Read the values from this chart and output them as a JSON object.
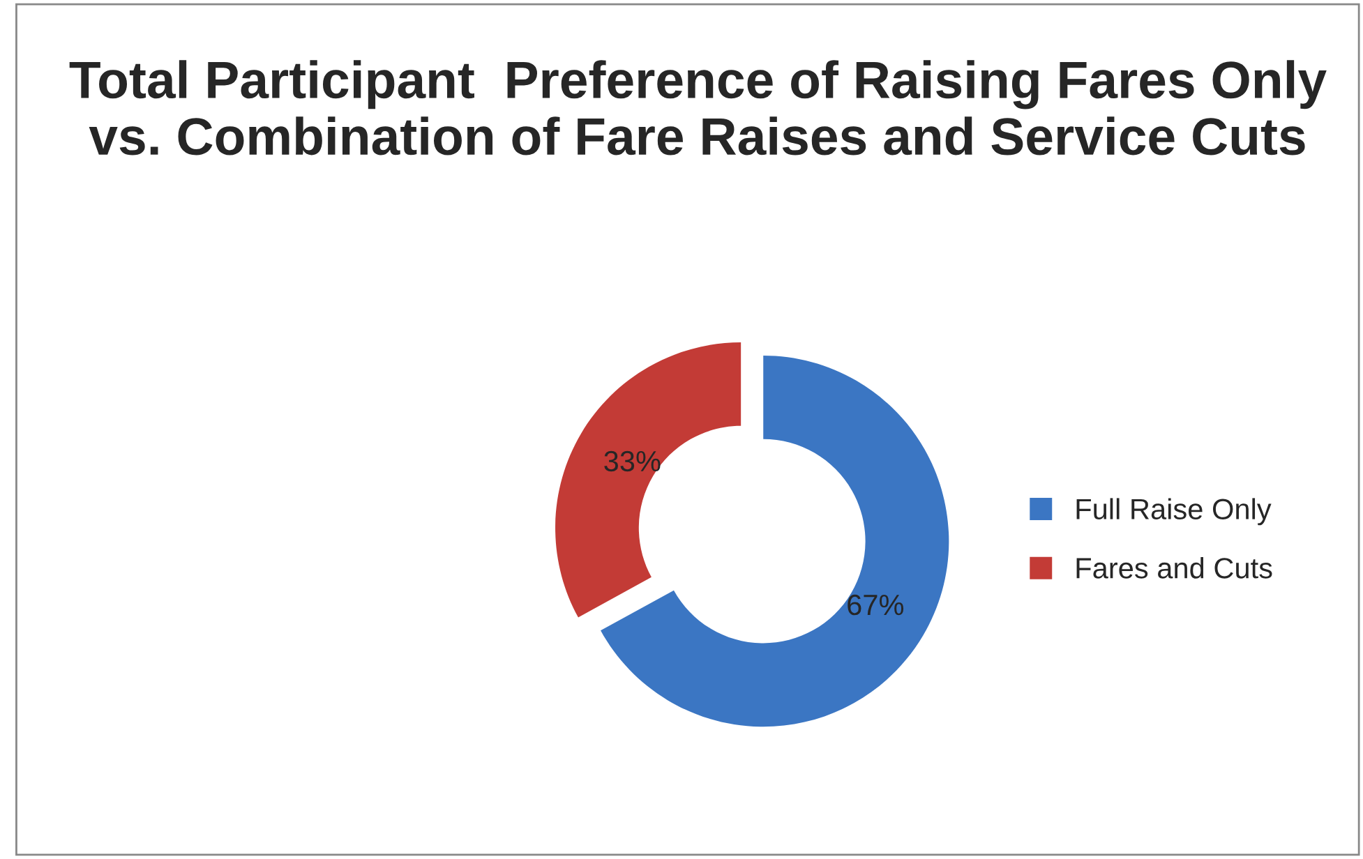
{
  "chart_data": {
    "type": "donut",
    "title": "Total Participant  Preference of Raising Fares Only vs. Combination of Fare Raises and Service Cuts",
    "categories": [
      "Full Raise Only",
      "Fares and Cuts"
    ],
    "values": [
      67,
      33
    ],
    "colors": [
      "#3b76c3",
      "#c33b36"
    ],
    "value_labels": [
      "67%",
      "33%"
    ],
    "legend": "right"
  }
}
